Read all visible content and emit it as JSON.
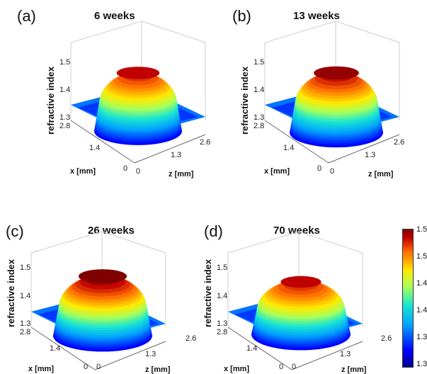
{
  "chart_data": [
    {
      "type": "surface3d",
      "panel_label": "(a)",
      "title": "6 weeks",
      "zlabel": "refractive index",
      "xlabel": "x [mm]",
      "ylabel": "z [mm]",
      "z_ticks": [
        "1.3",
        "1.4",
        "1.5"
      ],
      "x_ticks": [
        "0",
        "1.4",
        "2.8"
      ],
      "y_ticks": [
        "0",
        "1.3",
        "2.6"
      ],
      "peak_index": 1.53,
      "base_index": 1.33
    },
    {
      "type": "surface3d",
      "panel_label": "(b)",
      "title": "13 weeks",
      "zlabel": "refractive index",
      "xlabel": "x [mm]",
      "ylabel": "z [mm]",
      "z_ticks": [
        "1.3",
        "1.4",
        "1.5"
      ],
      "x_ticks": [
        "0",
        "1.4",
        "2.8"
      ],
      "y_ticks": [
        "0",
        "1.3",
        "2.6"
      ],
      "peak_index": 1.54,
      "base_index": 1.33
    },
    {
      "type": "surface3d",
      "panel_label": "(c)",
      "title": "26 weeks",
      "zlabel": "refractive index",
      "xlabel": "x [mm]",
      "ylabel": "z [mm]",
      "z_ticks": [
        "1.3",
        "1.4",
        "1.5"
      ],
      "x_ticks": [
        "0",
        "1.4",
        "2.8"
      ],
      "y_ticks": [
        "0",
        "1.3",
        "2.6"
      ],
      "peak_index": 1.55,
      "base_index": 1.33
    },
    {
      "type": "surface3d",
      "panel_label": "(d)",
      "title": "70 weeks",
      "zlabel": "refractive index",
      "xlabel": "x [mm]",
      "ylabel": "z [mm]",
      "z_ticks": [
        "1.3",
        "1.4",
        "1.5"
      ],
      "x_ticks": [
        "0",
        "1.4",
        "2.8"
      ],
      "y_ticks": [
        "0",
        "1.3",
        "2.6"
      ],
      "peak_index": 1.53,
      "base_index": 1.33
    }
  ],
  "colorbar": {
    "ticks": [
      "1.55",
      "1.5",
      "1.45",
      "1.4",
      "1.35",
      "1.3"
    ],
    "min": 1.3,
    "max": 1.55
  }
}
